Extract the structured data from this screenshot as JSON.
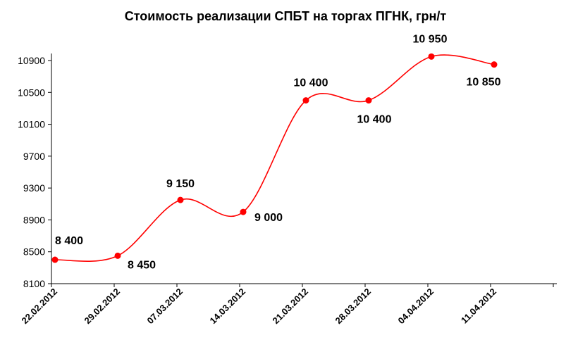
{
  "chart_data": {
    "type": "line",
    "title": "Стоимость реализации СПБТ на торгах ПГНК, грн/т",
    "categories": [
      "22.02.2012",
      "29.02.2012",
      "07.03.2012",
      "14.03.2012",
      "21.03.2012",
      "28.03.2012",
      "04.04.2012",
      "11.04.2012"
    ],
    "series": [
      {
        "values": [
          8400,
          8450,
          9150,
          9000,
          10400,
          10400,
          10950,
          10850
        ],
        "data_labels": [
          "8 400",
          "8 450",
          "9 150",
          "9 000",
          "10 400",
          "10 400",
          "10 950",
          "10 850"
        ]
      }
    ],
    "ylim": [
      8100,
      10900
    ],
    "yticks": [
      8100,
      8500,
      8900,
      9300,
      9700,
      10100,
      10500,
      10900
    ],
    "xlabel": "",
    "ylabel": "",
    "grid": false,
    "smooth": true,
    "line_color": "#ff0000",
    "marker_color": "#ff0000"
  }
}
